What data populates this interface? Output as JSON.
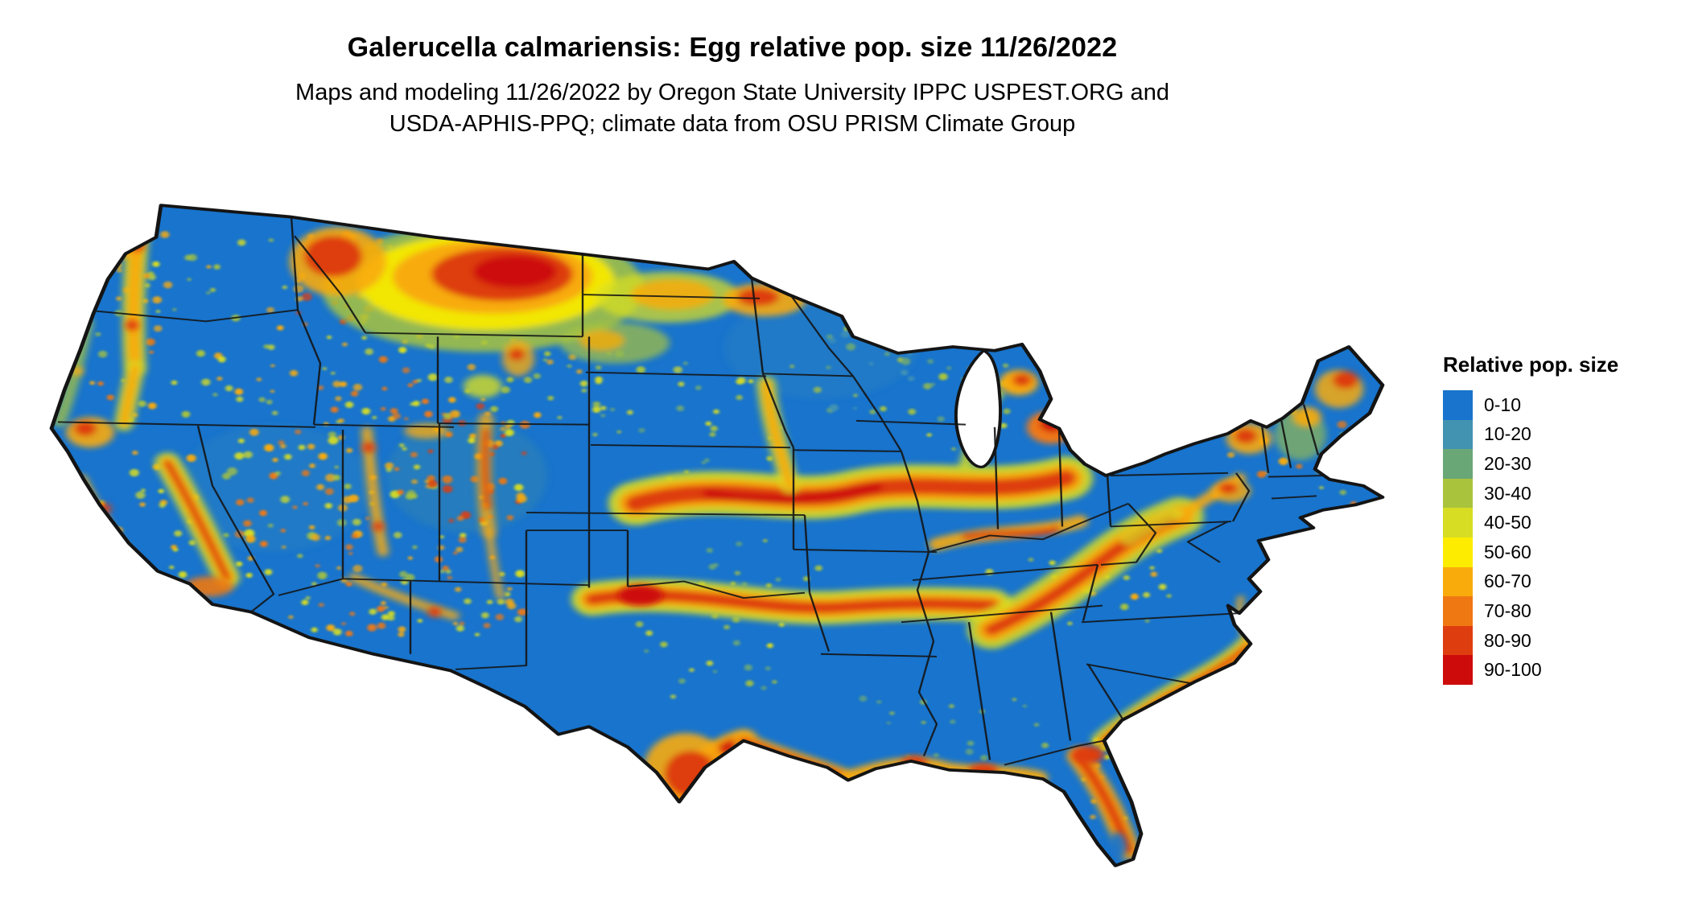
{
  "page": {
    "title": "Galerucella calmariensis: Egg relative pop. size 11/26/2022",
    "subtitle_line1": "Maps and modeling 11/26/2022 by Oregon State University IPPC USPEST.ORG and",
    "subtitle_line2": "USDA-APHIS-PPQ; climate data from OSU PRISM Climate Group"
  },
  "legend": {
    "title": "Relative pop. size",
    "items": [
      {
        "label": "0-10",
        "color": "#1874cd"
      },
      {
        "label": "10-20",
        "color": "#4293b2"
      },
      {
        "label": "20-30",
        "color": "#6aa777"
      },
      {
        "label": "30-40",
        "color": "#a9c43c"
      },
      {
        "label": "40-50",
        "color": "#d7dd22"
      },
      {
        "label": "50-60",
        "color": "#fdec00"
      },
      {
        "label": "60-70",
        "color": "#f8ab0b"
      },
      {
        "label": "70-80",
        "color": "#f07813"
      },
      {
        "label": "80-90",
        "color": "#de3e0f"
      },
      {
        "label": "90-100",
        "color": "#cd0b0b"
      }
    ]
  },
  "map": {
    "region": "Contiguous United States",
    "layer": "Egg relative population size raster",
    "base_color": "#1874cd",
    "border_color": "#141414",
    "water_color": "#ffffff"
  }
}
